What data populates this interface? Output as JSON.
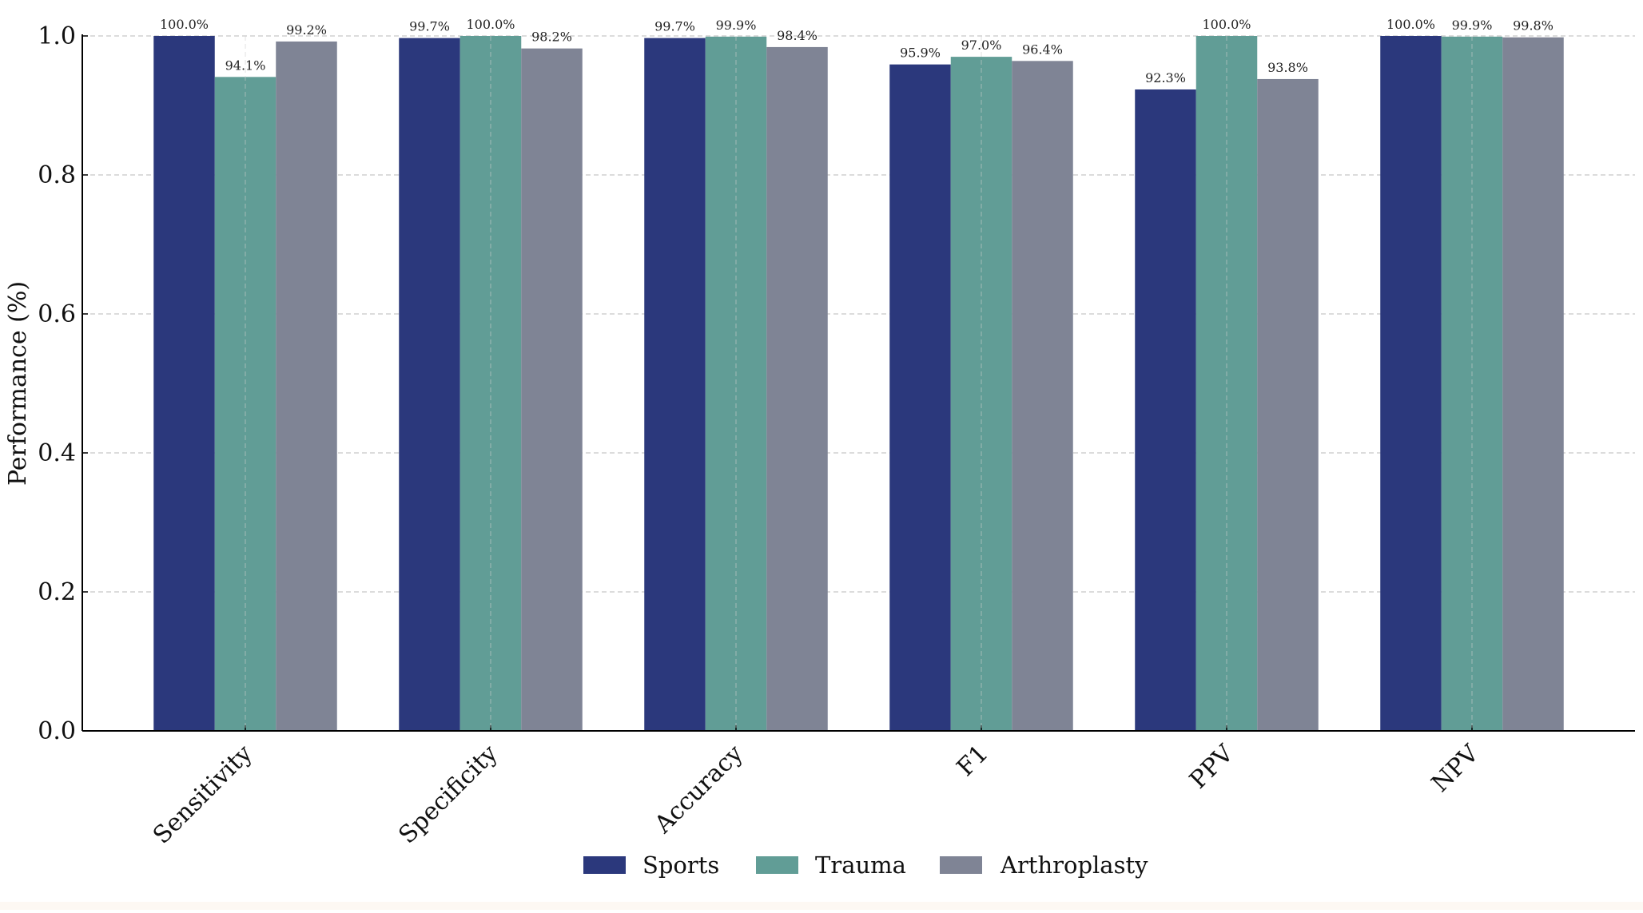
{
  "chart_data": {
    "type": "bar",
    "title": "",
    "xlabel": "",
    "ylabel": "Performance (%)",
    "ylim": [
      0.0,
      1.0
    ],
    "yticks": [
      0.0,
      0.2,
      0.4,
      0.6,
      0.8,
      1.0
    ],
    "ytick_labels": [
      "0.0",
      "0.2",
      "0.4",
      "0.6",
      "0.8",
      "1.0"
    ],
    "grid": true,
    "legend_position": "bottom-center",
    "categories": [
      "Sensitivity",
      "Specificity",
      "Accuracy",
      "F1",
      "PPV",
      "NPV"
    ],
    "series": [
      {
        "name": "Sports",
        "color": "#2b387c",
        "values": [
          1.0,
          0.997,
          0.997,
          0.959,
          0.923,
          1.0
        ],
        "labels": [
          "100.0%",
          "99.7%",
          "99.7%",
          "95.9%",
          "92.3%",
          "100.0%"
        ]
      },
      {
        "name": "Trauma",
        "color": "#619d96",
        "values": [
          0.941,
          1.0,
          0.999,
          0.97,
          1.0,
          0.999
        ],
        "labels": [
          "94.1%",
          "100.0%",
          "99.9%",
          "97.0%",
          "100.0%",
          "99.9%"
        ]
      },
      {
        "name": "Arthroplasty",
        "color": "#7f8495",
        "values": [
          0.992,
          0.982,
          0.984,
          0.964,
          0.938,
          0.998
        ],
        "labels": [
          "99.2%",
          "98.2%",
          "98.4%",
          "96.4%",
          "93.8%",
          "99.8%"
        ]
      }
    ]
  }
}
